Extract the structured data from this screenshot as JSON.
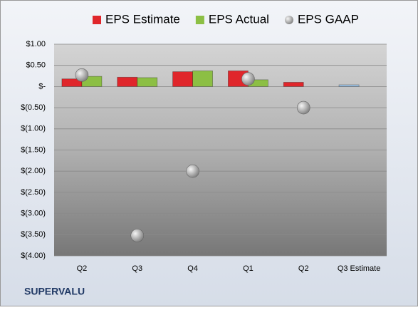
{
  "chart_data": {
    "type": "bar",
    "footer": "SUPERVALU",
    "categories": [
      "Q2",
      "Q3",
      "Q4",
      "Q1",
      "Q2",
      "Q3 Estimate"
    ],
    "series": [
      {
        "name": "EPS Estimate",
        "type": "bar",
        "color": "#e0262b",
        "colors": [
          "#e0262b",
          "#e0262b",
          "#e0262b",
          "#e0262b",
          "#e0262b",
          "#9dc3e6"
        ],
        "values": [
          0.18,
          0.22,
          0.35,
          0.37,
          0.1,
          0.04
        ]
      },
      {
        "name": "EPS Actual",
        "type": "bar",
        "color": "#8cbf44",
        "values": [
          0.24,
          0.21,
          0.37,
          0.16,
          null,
          null
        ]
      },
      {
        "name": "EPS GAAP",
        "type": "scatter",
        "color": "#a6a6a6",
        "values": [
          0.27,
          -3.52,
          -2.0,
          0.18,
          -0.5,
          null
        ]
      }
    ],
    "ylim": [
      -4,
      1
    ],
    "yticks": [
      {
        "value": 1,
        "label": "$1.00"
      },
      {
        "value": 0.5,
        "label": "$0.50"
      },
      {
        "value": 0,
        "label": "$-"
      },
      {
        "value": -0.5,
        "label": "$(0.50)"
      },
      {
        "value": -1,
        "label": "$(1.00)"
      },
      {
        "value": -1.5,
        "label": "$(1.50)"
      },
      {
        "value": -2,
        "label": "$(2.00)"
      },
      {
        "value": -2.5,
        "label": "$(2.50)"
      },
      {
        "value": -3,
        "label": "$(3.00)"
      },
      {
        "value": -3.5,
        "label": "$(3.50)"
      },
      {
        "value": -4,
        "label": "$(4.00)"
      }
    ],
    "grid": true,
    "legend": "top"
  }
}
